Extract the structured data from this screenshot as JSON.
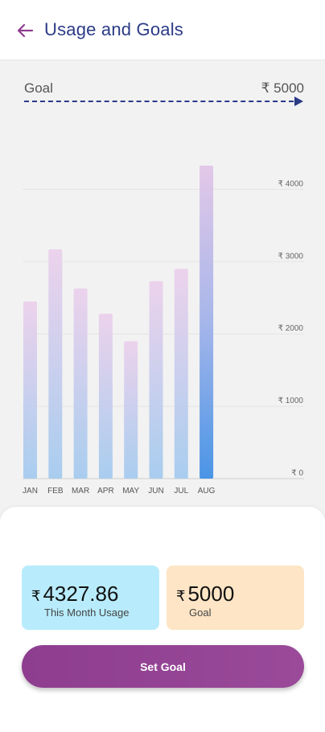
{
  "header": {
    "back_icon": "arrow-left-icon",
    "title": "Usage and Goals",
    "accent_color": "#8e3d8f",
    "title_color": "#2b3b86"
  },
  "goal_line": {
    "label": "Goal",
    "value": "₹ 5000"
  },
  "chart_data": {
    "type": "bar",
    "categories": [
      "JAN",
      "FEB",
      "MAR",
      "APR",
      "MAY",
      "JUN",
      "JUL",
      "AUG"
    ],
    "values": [
      2450,
      3170,
      2630,
      2280,
      1900,
      2730,
      2900,
      4327.86
    ],
    "y_ticks": [
      "₹ 0",
      "₹ 1000",
      "₹ 2000",
      "₹ 3000",
      "₹ 4000"
    ],
    "y_tick_values": [
      0,
      1000,
      2000,
      3000,
      4000
    ],
    "ylim": [
      0,
      4500
    ],
    "grid": true,
    "highlight_index": 7,
    "xlabel": "",
    "ylabel": ""
  },
  "summary": {
    "usage": {
      "currency": "₹",
      "amount": "4327.86",
      "caption": "This Month Usage",
      "color": "#b8ecfc"
    },
    "goal": {
      "currency": "₹",
      "amount": "5000",
      "caption": "Goal",
      "color": "#fde5c5"
    }
  },
  "actions": {
    "set_goal_label": "Set Goal"
  }
}
